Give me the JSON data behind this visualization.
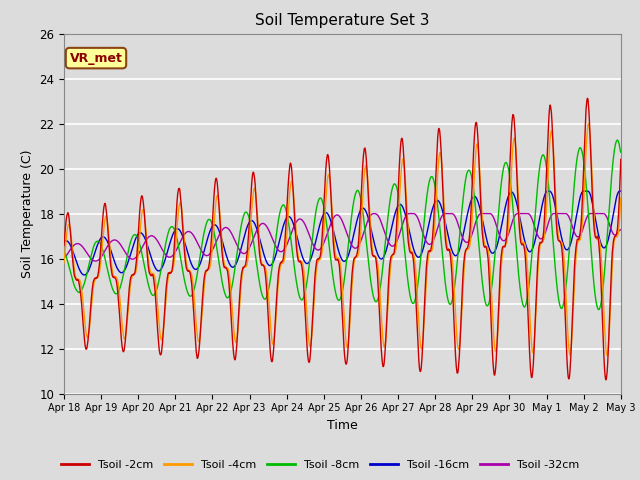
{
  "title": "Soil Temperature Set 3",
  "xlabel": "Time",
  "ylabel": "Soil Temperature (C)",
  "ylim": [
    10,
    26
  ],
  "background_color": "#dcdcdc",
  "plot_bg_color": "#dcdcdc",
  "grid_color": "#ffffff",
  "annotation_text": "VR_met",
  "annotation_bg": "#ffff99",
  "annotation_border": "#8b4513",
  "colors": {
    "2cm": "#cc0000",
    "4cm": "#ff9900",
    "8cm": "#00bb00",
    "16cm": "#0000cc",
    "32cm": "#aa00aa"
  },
  "legend_labels": [
    "Tsoil -2cm",
    "Tsoil -4cm",
    "Tsoil -8cm",
    "Tsoil -16cm",
    "Tsoil -32cm"
  ],
  "xtick_labels": [
    "Apr 18",
    "Apr 19",
    "Apr 20",
    "Apr 21",
    "Apr 22",
    "Apr 23",
    "Apr 24",
    "Apr 25",
    "Apr 26",
    "Apr 27",
    "Apr 28",
    "Apr 29",
    "Apr 30",
    "May 1",
    "May 2",
    "May 3"
  ],
  "ytick_values": [
    10,
    12,
    14,
    16,
    18,
    20,
    22,
    24,
    26
  ]
}
